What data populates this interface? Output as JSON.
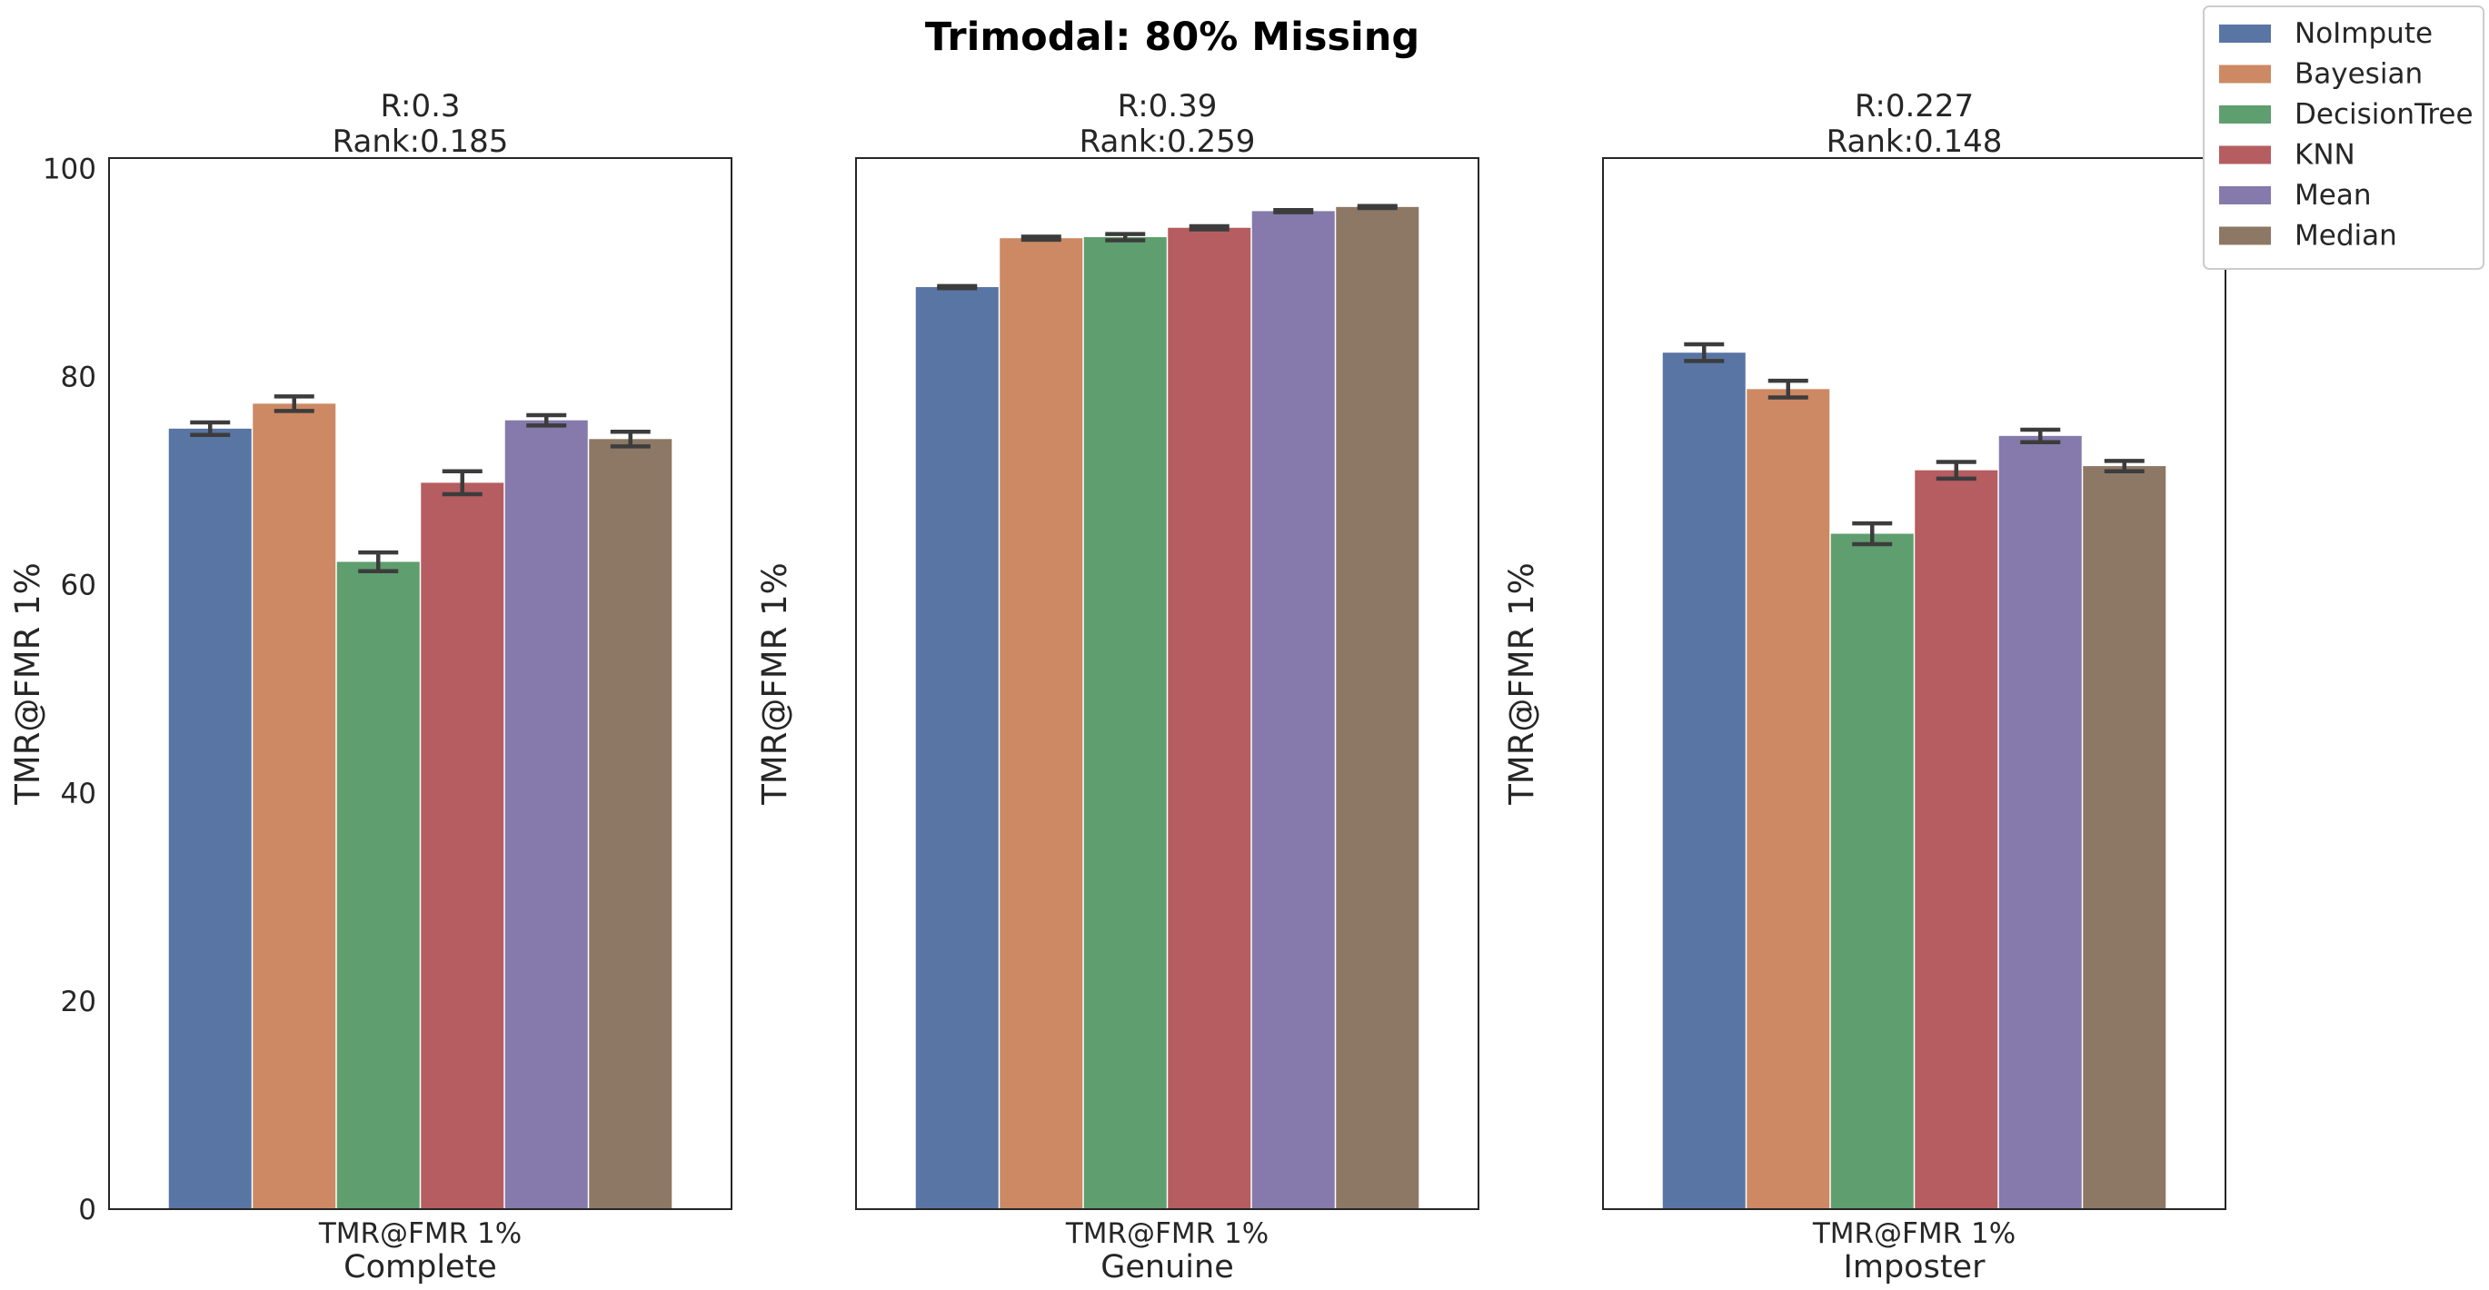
{
  "figure": {
    "suptitle": "Trimodal: 80% Missing"
  },
  "legend": {
    "placement": "top-right",
    "entries": [
      "NoImpute",
      "Bayesian",
      "DecisionTree",
      "KNN",
      "Mean",
      "Median"
    ]
  },
  "colors": {
    "NoImpute": "#5975a4",
    "Bayesian": "#cc8963",
    "DecisionTree": "#5f9e6e",
    "KNN": "#b55d60",
    "Mean": "#857aab",
    "Median": "#8d7866",
    "errorbar": "#3c3c3c",
    "frame": "#262626"
  },
  "chart_data": [
    {
      "type": "bar",
      "title_lines": [
        "R:0.3",
        "Rank:0.185"
      ],
      "categories": [
        "TMR@FMR 1%"
      ],
      "xlabel": "Complete",
      "ylabel": "TMR@FMR 1%",
      "ylim": [
        0,
        101
      ],
      "yticks": [
        0,
        20,
        40,
        60,
        80,
        100
      ],
      "show_ytick_labels": true,
      "grid": false,
      "series": [
        {
          "name": "NoImpute",
          "values": [
            75.0
          ],
          "err": [
            0.6
          ]
        },
        {
          "name": "Bayesian",
          "values": [
            77.4
          ],
          "err": [
            0.7
          ]
        },
        {
          "name": "DecisionTree",
          "values": [
            62.2
          ],
          "err": [
            0.9
          ]
        },
        {
          "name": "KNN",
          "values": [
            69.8
          ],
          "err": [
            1.1
          ]
        },
        {
          "name": "Mean",
          "values": [
            75.8
          ],
          "err": [
            0.5
          ]
        },
        {
          "name": "Median",
          "values": [
            74.0
          ],
          "err": [
            0.7
          ]
        }
      ]
    },
    {
      "type": "bar",
      "title_lines": [
        "R:0.39",
        "Rank:0.259"
      ],
      "categories": [
        "TMR@FMR 1%"
      ],
      "xlabel": "Genuine",
      "ylabel": "TMR@FMR 1%",
      "ylim": [
        0,
        101
      ],
      "yticks": [
        0,
        20,
        40,
        60,
        80,
        100
      ],
      "show_ytick_labels": false,
      "grid": false,
      "series": [
        {
          "name": "NoImpute",
          "values": [
            88.6
          ],
          "err": [
            0.1
          ]
        },
        {
          "name": "Bayesian",
          "values": [
            93.3
          ],
          "err": [
            0.15
          ]
        },
        {
          "name": "DecisionTree",
          "values": [
            93.4
          ],
          "err": [
            0.3
          ]
        },
        {
          "name": "KNN",
          "values": [
            94.3
          ],
          "err": [
            0.15
          ]
        },
        {
          "name": "Mean",
          "values": [
            95.9
          ],
          "err": [
            0.1
          ]
        },
        {
          "name": "Median",
          "values": [
            96.3
          ],
          "err": [
            0.1
          ]
        }
      ]
    },
    {
      "type": "bar",
      "title_lines": [
        "R:0.227",
        "Rank:0.148"
      ],
      "categories": [
        "TMR@FMR 1%"
      ],
      "xlabel": "Imposter",
      "ylabel": "TMR@FMR 1%",
      "ylim": [
        0,
        101
      ],
      "yticks": [
        0,
        20,
        40,
        60,
        80,
        100
      ],
      "show_ytick_labels": false,
      "grid": false,
      "series": [
        {
          "name": "NoImpute",
          "values": [
            82.3
          ],
          "err": [
            0.8
          ]
        },
        {
          "name": "Bayesian",
          "values": [
            78.8
          ],
          "err": [
            0.8
          ]
        },
        {
          "name": "DecisionTree",
          "values": [
            64.9
          ],
          "err": [
            1.0
          ]
        },
        {
          "name": "KNN",
          "values": [
            71.0
          ],
          "err": [
            0.8
          ]
        },
        {
          "name": "Mean",
          "values": [
            74.3
          ],
          "err": [
            0.6
          ]
        },
        {
          "name": "Median",
          "values": [
            71.4
          ],
          "err": [
            0.5
          ]
        }
      ]
    }
  ]
}
